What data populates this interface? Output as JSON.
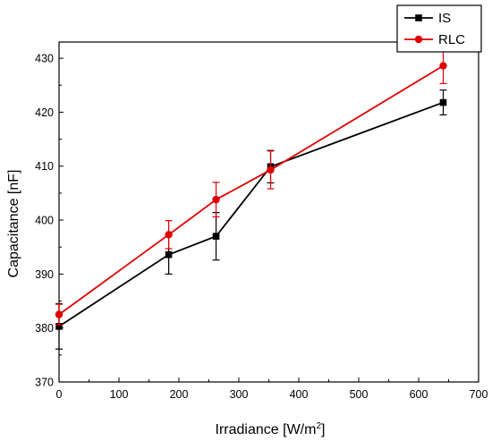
{
  "chart_data": {
    "type": "line",
    "xlabel": "Irradiance [W/m",
    "xlabel_superscript": "2",
    "xlabel_suffix": "]",
    "ylabel": "Capacitance [nF]",
    "xlim": [
      0,
      700
    ],
    "ylim": [
      370,
      433
    ],
    "xticks": [
      "0",
      "100",
      "200",
      "300",
      "400",
      "500",
      "600",
      "700"
    ],
    "yticks": [
      "370",
      "380",
      "390",
      "400",
      "410",
      "420",
      "430"
    ],
    "grid": false,
    "legend_position": "top-right",
    "series": [
      {
        "name": "IS",
        "color": "#000000",
        "marker": "square",
        "x": [
          0,
          183,
          262,
          353,
          641
        ],
        "y": [
          380.3,
          393.6,
          397.0,
          409.9,
          421.8
        ],
        "err": [
          4.2,
          3.6,
          4.4,
          3.0,
          2.3
        ]
      },
      {
        "name": "RLC",
        "color": "#e00000",
        "marker": "circle",
        "x": [
          0,
          183,
          262,
          353,
          641
        ],
        "y": [
          382.5,
          397.3,
          403.8,
          409.3,
          428.6
        ],
        "err": [
          1.9,
          2.6,
          3.2,
          3.5,
          3.3
        ]
      }
    ]
  }
}
